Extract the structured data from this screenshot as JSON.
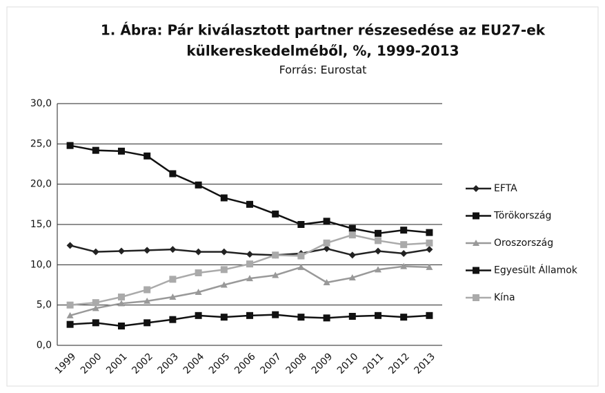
{
  "chart_data": {
    "type": "line",
    "title": [
      "1. Ábra: Pár kiválasztott partner részesedése az EU27-ek",
      "külkereskedelméből, %, 1999-2013"
    ],
    "subtitle": "Forrás: Eurostat",
    "categories": [
      "1999",
      "2000",
      "2001",
      "2002",
      "2003",
      "2004",
      "2005",
      "2006",
      "2007",
      "2008",
      "2009",
      "2010",
      "2011",
      "2012",
      "2013"
    ],
    "series": [
      {
        "name": "EFTA",
        "color": "#222222",
        "marker": "diamond",
        "values": [
          12.4,
          11.6,
          11.7,
          11.8,
          11.9,
          11.6,
          11.6,
          11.3,
          11.2,
          11.4,
          12.0,
          11.2,
          11.7,
          11.4,
          11.9
        ]
      },
      {
        "name": "Törökország",
        "color": "#111111",
        "marker": "square",
        "values": [
          2.6,
          2.8,
          2.4,
          2.8,
          3.2,
          3.7,
          3.5,
          3.7,
          3.8,
          3.5,
          3.4,
          3.6,
          3.7,
          3.5,
          3.7
        ]
      },
      {
        "name": "Oroszország",
        "color": "#999999",
        "marker": "triangle",
        "values": [
          3.7,
          4.6,
          5.2,
          5.5,
          6.0,
          6.6,
          7.5,
          8.3,
          8.7,
          9.7,
          7.8,
          8.4,
          9.4,
          9.8,
          9.7
        ]
      },
      {
        "name": "Egyesült Államok",
        "color": "#111111",
        "marker": "square",
        "values": [
          24.8,
          24.2,
          24.1,
          23.5,
          21.3,
          19.9,
          18.3,
          17.5,
          16.3,
          15.0,
          15.4,
          14.5,
          13.9,
          14.3,
          14.0
        ]
      },
      {
        "name": "Kína",
        "color": "#aaaaaa",
        "marker": "square",
        "values": [
          5.0,
          5.3,
          6.0,
          6.9,
          8.2,
          9.0,
          9.4,
          10.1,
          11.2,
          11.1,
          12.7,
          13.7,
          13.0,
          12.5,
          12.7
        ]
      }
    ],
    "ylim": [
      0,
      30
    ],
    "yticks": [
      {
        "value": 0,
        "label": "0,0"
      },
      {
        "value": 5,
        "label": "5,0"
      },
      {
        "value": 10,
        "label": "10,0"
      },
      {
        "value": 15,
        "label": "15,0"
      },
      {
        "value": 20,
        "label": "20,0"
      },
      {
        "value": 25,
        "label": "25,0"
      },
      {
        "value": 30,
        "label": "30,0"
      }
    ],
    "grid": true,
    "legend": "right"
  }
}
